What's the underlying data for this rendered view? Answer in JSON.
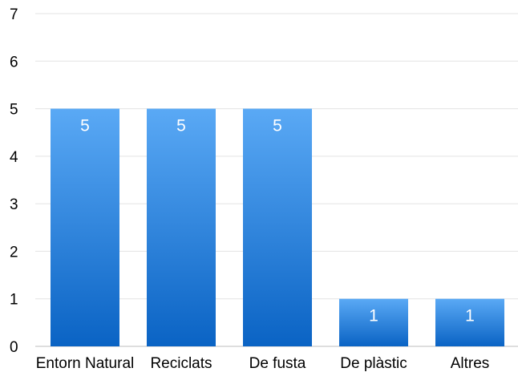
{
  "chart_data": {
    "type": "bar",
    "categories": [
      "Entorn Natural",
      "Reciclats",
      "De fusta",
      "De plàstic",
      "Altres"
    ],
    "values": [
      5,
      5,
      5,
      1,
      1
    ],
    "data_labels": [
      "5",
      "5",
      "5",
      "1",
      "1"
    ],
    "title": "",
    "xlabel": "",
    "ylabel": "",
    "ylim": [
      0,
      7
    ],
    "yticks": [
      "0",
      "1",
      "2",
      "3",
      "4",
      "5",
      "6",
      "7"
    ],
    "grid": true,
    "legend": "none",
    "colors": {
      "bar_top": "#5aa9f5",
      "bar_bottom": "#0a63c4",
      "data_label": "#ffffff",
      "grid": "#e3e3e3"
    }
  }
}
